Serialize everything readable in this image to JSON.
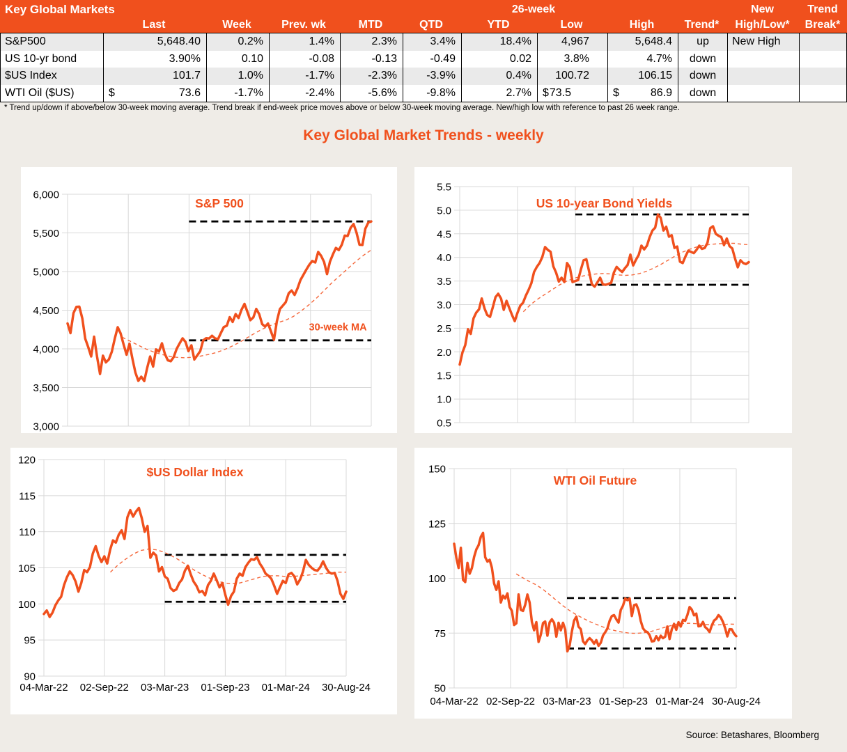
{
  "table": {
    "title": "Key Global Markets",
    "group_low_high": "26-week",
    "group_new": "New",
    "group_trend": "Trend",
    "columns": [
      "",
      "Last",
      "Week",
      "Prev. wk",
      "MTD",
      "QTD",
      "YTD",
      "Low",
      "High",
      "Trend*",
      "High/Low*",
      "Break*"
    ],
    "rows": [
      {
        "label": "S&P500",
        "last_cur": "",
        "last": "5,648.40",
        "week": "0.2%",
        "prev_wk": "1.4%",
        "mtd": "2.3%",
        "qtd": "3.4%",
        "ytd": "18.4%",
        "low_cur": "",
        "low": "4,967",
        "high_cur": "",
        "high": "5,648.4",
        "trend": "up",
        "new_high_low": "New High",
        "trend_break": ""
      },
      {
        "label": "US 10-yr bond",
        "last_cur": "",
        "last": "3.90%",
        "week": "0.10",
        "prev_wk": "-0.08",
        "mtd": "-0.13",
        "qtd": "-0.49",
        "ytd": "0.02",
        "low_cur": "",
        "low": "3.8%",
        "high_cur": "",
        "high": "4.7%",
        "trend": "down",
        "new_high_low": "",
        "trend_break": ""
      },
      {
        "label": "$US Index",
        "last_cur": "",
        "last": "101.7",
        "week": "1.0%",
        "prev_wk": "-1.7%",
        "mtd": "-2.3%",
        "qtd": "-3.9%",
        "ytd": "0.4%",
        "low_cur": "",
        "low": "100.72",
        "high_cur": "",
        "high": "106.15",
        "trend": "down",
        "new_high_low": "",
        "trend_break": ""
      },
      {
        "label": "WTI Oil ($US)",
        "last_cur": "$",
        "last": "73.6",
        "week": "-1.7%",
        "prev_wk": "-2.4%",
        "mtd": "-5.6%",
        "qtd": "-9.8%",
        "ytd": "2.7%",
        "low_cur": "$",
        "low": "73.5",
        "high_cur": "$",
        "high": "86.9",
        "trend": "down",
        "new_high_low": "",
        "trend_break": ""
      }
    ],
    "footnote": "*  Trend up/down if above/below 30-week moving average. Trend break if end-week price moves above or below 30-week moving average.  New/high low with reference to past 26 week range."
  },
  "page_title": "Key Global Market Trends - weekly",
  "source": "Source:  Betashares, Bloomberg",
  "colors": {
    "accent": "#F0501D",
    "ma_line": "#F5683C",
    "grid": "#D8D8D8",
    "dashed": "#000000",
    "header_bg": "#F0501D",
    "stripe": "#EAEAEA",
    "page_bg": "#EFECE7",
    "panel_bg": "#FFFFFF"
  },
  "chart_data": [
    {
      "id": "sp500",
      "type": "line",
      "title": "S&P 500",
      "ylim": [
        3000,
        6000
      ],
      "y_ticks": [
        6000,
        5500,
        5000,
        4500,
        4000,
        3500,
        3000
      ],
      "y_tick_labels": [
        "6,000",
        "5,500",
        "5,000",
        "4,500",
        "4,000",
        "3,500",
        "3,000"
      ],
      "x_tick_labels": [
        "04-Mar-22",
        "02-Sep-22",
        "03-Mar-23",
        "01-Sep-23",
        "01-Mar-24",
        "30-Aug-24"
      ],
      "show_x_labels": false,
      "values": [
        4329,
        4204,
        4463,
        4543,
        4546,
        4393,
        4131,
        4024,
        3901,
        4158,
        3901,
        3675,
        3912,
        3825,
        3863,
        3962,
        4130,
        4280,
        4199,
        4058,
        3924,
        4067,
        3873,
        3693,
        3586,
        3640,
        3583,
        3753,
        3901,
        3771,
        3993,
        3965,
        4072,
        3934,
        3852,
        3840,
        3895,
        3999,
        4071,
        4136,
        4090,
        3970,
        4046,
        3862,
        3917,
        3971,
        4109,
        4138,
        4134,
        4169,
        4136,
        4124,
        4205,
        4282,
        4299,
        4410,
        4348,
        4450,
        4399,
        4505,
        4582,
        4478,
        4370,
        4406,
        4516,
        4450,
        4320,
        4288,
        4328,
        4224,
        4117,
        4358,
        4514,
        4559,
        4604,
        4719,
        4755,
        4697,
        4784,
        4891,
        4959,
        5027,
        5089,
        5137,
        5117,
        5254,
        5204,
        5123,
        4967,
        5128,
        5223,
        5305,
        5278,
        5347,
        5465,
        5460,
        5567,
        5615,
        5505,
        5347,
        5344,
        5554,
        5635,
        5648
      ],
      "ma": {
        "start_frac": 0.18,
        "values": [
          4150,
          4100,
          4050,
          4000,
          3960,
          3930,
          3905,
          3890,
          3885,
          3890,
          3905,
          3925,
          3950,
          3985,
          4030,
          4080,
          4140,
          4200,
          4255,
          4300,
          4340,
          4370,
          4420,
          4490,
          4570,
          4660,
          4760,
          4860,
          4950,
          5040,
          5130,
          5210,
          5280
        ]
      },
      "range_lines": {
        "high": 5648,
        "low": 4110,
        "start_frac": 0.4
      },
      "annotation": {
        "text": "30-week MA",
        "x_frac": 0.89,
        "y_value": 4240
      }
    },
    {
      "id": "bond10y",
      "type": "line",
      "title": "US 10-year Bond Yields",
      "ylim": [
        0.5,
        5.5
      ],
      "y_ticks": [
        5.5,
        5.0,
        4.5,
        4.0,
        3.5,
        3.0,
        2.5,
        2.0,
        1.5,
        1.0,
        0.5
      ],
      "y_tick_labels": [
        "5.5",
        "5.0",
        "4.5",
        "4.0",
        "3.5",
        "3.0",
        "2.5",
        "2.0",
        "1.5",
        "1.0",
        "0.5"
      ],
      "x_tick_labels": [
        "04-Mar-22",
        "02-Sep-22",
        "03-Mar-23",
        "01-Sep-23",
        "01-Mar-24",
        "30-Aug-24"
      ],
      "show_x_labels": false,
      "values": [
        1.73,
        1.99,
        2.14,
        2.48,
        2.38,
        2.71,
        2.83,
        2.9,
        3.13,
        2.92,
        2.78,
        2.74,
        2.94,
        3.16,
        3.23,
        3.13,
        2.89,
        3.08,
        2.93,
        2.78,
        2.65,
        2.83,
        2.98,
        3.04,
        3.19,
        3.31,
        3.45,
        3.69,
        3.8,
        3.88,
        4.01,
        4.22,
        4.16,
        4.12,
        3.81,
        3.68,
        3.49,
        3.57,
        3.48,
        3.88,
        3.79,
        3.48,
        3.5,
        3.52,
        3.74,
        3.94,
        3.96,
        3.7,
        3.43,
        3.38,
        3.47,
        3.57,
        3.43,
        3.42,
        3.44,
        3.46,
        3.68,
        3.8,
        3.74,
        3.69,
        3.77,
        3.84,
        4.06,
        3.83,
        3.95,
        4.05,
        4.25,
        4.17,
        4.25,
        4.43,
        4.57,
        4.63,
        4.91,
        4.84,
        4.57,
        4.65,
        4.44,
        4.47,
        4.2,
        4.23,
        3.91,
        3.88,
        4.02,
        4.14,
        4.12,
        4.09,
        4.16,
        4.25,
        4.18,
        4.2,
        4.31,
        4.62,
        4.66,
        4.5,
        4.46,
        4.43,
        4.26,
        4.4,
        4.24,
        4.19,
        3.98,
        3.79,
        3.94,
        3.88,
        3.86,
        3.9
      ],
      "ma": {
        "start_frac": 0.22,
        "values": [
          2.85,
          3.0,
          3.12,
          3.22,
          3.32,
          3.42,
          3.5,
          3.56,
          3.6,
          3.63,
          3.65,
          3.66,
          3.65,
          3.63,
          3.62,
          3.63,
          3.66,
          3.71,
          3.78,
          3.86,
          3.95,
          4.04,
          4.12,
          4.18,
          4.23,
          4.26,
          4.28,
          4.29,
          4.3,
          4.3,
          4.28,
          4.27
        ]
      },
      "range_lines": {
        "high": 4.91,
        "low": 3.42,
        "start_frac": 0.4
      },
      "annotation": null
    },
    {
      "id": "dxy",
      "type": "line",
      "title": "$US Dollar Index",
      "ylim": [
        90,
        120
      ],
      "y_ticks": [
        120,
        115,
        110,
        105,
        100,
        95,
        90
      ],
      "y_tick_labels": [
        "120",
        "115",
        "110",
        "105",
        "100",
        "95",
        "90"
      ],
      "x_tick_labels": [
        "04-Mar-22",
        "02-Sep-22",
        "03-Mar-23",
        "01-Sep-23",
        "01-Mar-24",
        "30-Aug-24"
      ],
      "show_x_labels": true,
      "values": [
        98.6,
        99.1,
        98.2,
        98.8,
        99.8,
        100.5,
        101.0,
        102.6,
        103.7,
        104.5,
        104.0,
        103.1,
        101.7,
        102.9,
        104.7,
        104.4,
        105.1,
        107.0,
        108.0,
        106.7,
        105.8,
        106.6,
        105.6,
        107.5,
        108.8,
        108.5,
        109.6,
        110.2,
        109.0,
        112.0,
        113.0,
        112.1,
        112.8,
        113.3,
        111.9,
        110.0,
        110.8,
        106.4,
        107.1,
        106.7,
        104.5,
        105.1,
        103.8,
        103.5,
        102.2,
        101.8,
        102.0,
        102.9,
        103.4,
        104.6,
        105.3,
        104.1,
        103.1,
        102.5,
        101.6,
        101.8,
        101.2,
        102.6,
        103.2,
        104.2,
        103.3,
        102.3,
        102.9,
        101.3,
        99.9,
        101.1,
        101.7,
        103.5,
        104.2,
        103.9,
        105.1,
        105.7,
        106.2,
        106.1,
        106.5,
        105.6,
        105.0,
        104.2,
        103.9,
        103.5,
        102.5,
        101.4,
        102.3,
        103.2,
        102.9,
        104.1,
        104.3,
        103.8,
        102.7,
        103.4,
        104.5,
        106.1,
        105.4,
        105.0,
        104.7,
        104.6,
        105.1,
        105.9,
        105.0,
        104.4,
        104.2,
        104.3,
        103.2,
        101.4,
        100.7,
        101.7
      ],
      "ma": {
        "start_frac": 0.22,
        "values": [
          104.4,
          105.4,
          106.2,
          106.9,
          107.4,
          107.6,
          107.5,
          107.2,
          106.7,
          106.1,
          105.4,
          104.7,
          104.1,
          103.6,
          103.2,
          102.9,
          102.8,
          102.9,
          103.2,
          103.5,
          103.8,
          103.9,
          103.9,
          103.8,
          103.8,
          103.9,
          104.0,
          104.1,
          104.2,
          104.3,
          104.4,
          104.4
        ]
      },
      "range_lines": {
        "high": 106.8,
        "low": 100.3,
        "start_frac": 0.4
      },
      "annotation": null
    },
    {
      "id": "wti",
      "type": "line",
      "title": "WTI Oil Future",
      "ylim": [
        50,
        150
      ],
      "y_ticks": [
        150,
        125,
        100,
        75,
        50
      ],
      "y_tick_labels": [
        "150",
        "125",
        "100",
        "75",
        "50"
      ],
      "x_tick_labels": [
        "04-Mar-22",
        "02-Sep-22",
        "03-Mar-23",
        "01-Sep-23",
        "01-Mar-24",
        "30-Aug-24"
      ],
      "show_x_labels": true,
      "values": [
        115.7,
        109.3,
        104.7,
        113.9,
        99.3,
        98.3,
        107.0,
        102.1,
        104.7,
        109.8,
        113.2,
        115.1,
        118.9,
        120.7,
        109.6,
        107.6,
        108.4,
        104.8,
        97.6,
        94.7,
        98.6,
        89.0,
        92.1,
        90.8,
        93.1,
        86.9,
        85.1,
        78.7,
        79.5,
        92.6,
        85.6,
        85.1,
        87.9,
        92.6,
        88.9,
        80.1,
        76.3,
        80.0,
        71.0,
        74.3,
        79.6,
        80.3,
        73.8,
        79.9,
        81.3,
        79.7,
        73.4,
        79.7,
        76.3,
        79.7,
        76.7,
        66.7,
        69.3,
        75.7,
        80.7,
        82.5,
        77.9,
        76.8,
        71.3,
        70.0,
        71.7,
        72.7,
        71.7,
        70.2,
        71.8,
        69.2,
        70.6,
        73.9,
        75.4,
        77.1,
        80.6,
        82.8,
        83.2,
        81.3,
        79.8,
        85.6,
        87.5,
        90.8,
        90.0,
        90.8,
        82.8,
        87.7,
        88.1,
        85.5,
        80.5,
        77.2,
        75.9,
        75.5,
        74.1,
        71.2,
        71.4,
        73.6,
        71.7,
        73.8,
        72.7,
        73.4,
        78.0,
        72.3,
        76.8,
        79.2,
        76.5,
        80.0,
        78.0,
        81.0,
        80.6,
        83.2,
        86.9,
        85.7,
        83.1,
        83.9,
        78.1,
        78.3,
        80.1,
        77.7,
        76.9,
        75.5,
        78.5,
        80.7,
        81.5,
        83.2,
        82.2,
        80.1,
        77.2,
        73.5,
        76.8,
        76.7,
        74.8,
        73.6
      ],
      "ma": {
        "start_frac": 0.22,
        "values": [
          102.0,
          100.2,
          98.5,
          97.0,
          95.0,
          92.5,
          90.0,
          87.5,
          85.3,
          83.4,
          81.8,
          80.3,
          79.0,
          77.8,
          76.8,
          76.0,
          75.4,
          75.0,
          74.9,
          75.1,
          75.6,
          76.4,
          77.4,
          78.3,
          79.0,
          79.4,
          79.5,
          79.3,
          79.0,
          78.8,
          78.7,
          78.9,
          79.1,
          79.0
        ]
      },
      "range_lines": {
        "high": 91.0,
        "low": 68.0,
        "start_frac": 0.4
      },
      "annotation": null
    }
  ]
}
